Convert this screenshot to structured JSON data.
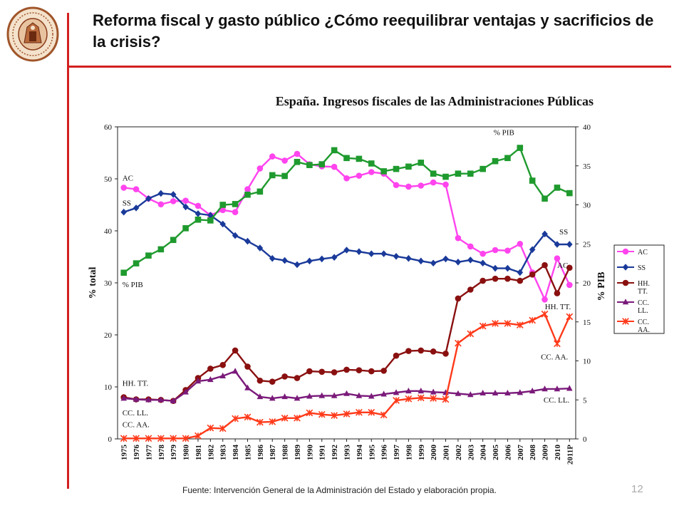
{
  "slide": {
    "title": "Reforma fiscal y gasto público ¿Cómo reequilibrar ventajas y sacrificios de la crisis?",
    "source": "Fuente: Intervención General de la Administración del Estado y elaboración propia.",
    "page_number": "12",
    "logo_icon": "university-seal-icon",
    "accent_color": "#d42020"
  },
  "chart_data": {
    "type": "line",
    "title": "España. Ingresos fiscales de las Administraciones Públicas",
    "ylabel": "% total",
    "y2label": "% PIB",
    "ylim": [
      0,
      60
    ],
    "y2lim": [
      0,
      40
    ],
    "yticks": [
      "0",
      "10",
      "20",
      "30",
      "40",
      "50",
      "60"
    ],
    "y2ticks": [
      "0",
      "5",
      "10",
      "15",
      "20",
      "25",
      "30",
      "35",
      "40"
    ],
    "categories": [
      "1975",
      "1976",
      "1977",
      "1978",
      "1979",
      "1980",
      "1981",
      "1982",
      "1983",
      "1984",
      "1985",
      "1986",
      "1987",
      "1988",
      "1989",
      "1990",
      "1991",
      "1992",
      "1993",
      "1994",
      "1995",
      "1996",
      "1997",
      "1998",
      "1999",
      "2000",
      "2001",
      "2002",
      "2003",
      "2004",
      "2005",
      "2006",
      "2007",
      "2008",
      "2009",
      "2010",
      "2011P"
    ],
    "legend_position": "right",
    "series": [
      {
        "name": "AC",
        "axis": "left",
        "color": "#ff44ee",
        "marker": "circle",
        "values": [
          48.3,
          48,
          46.2,
          45.1,
          45.7,
          45.8,
          44.8,
          43,
          44,
          43.6,
          48,
          52,
          54.3,
          53.5,
          54.8,
          52.8,
          52.4,
          52.3,
          50.1,
          50.6,
          51.3,
          51,
          48.8,
          48.5,
          48.7,
          49.3,
          48.9,
          38.6,
          37,
          35.6,
          36.3,
          36.2,
          37.5,
          32,
          26.8,
          34.7,
          29.6
        ]
      },
      {
        "name": "SS",
        "axis": "left",
        "color": "#1a3a9a",
        "marker": "diamond",
        "values": [
          43.6,
          44.4,
          46.2,
          47.2,
          47,
          44.6,
          43.3,
          43,
          41.3,
          39.1,
          38,
          36.7,
          34.7,
          34.3,
          33.5,
          34.2,
          34.6,
          34.9,
          36.3,
          36,
          35.6,
          35.6,
          35.1,
          34.7,
          34.2,
          33.8,
          34.6,
          34,
          34.4,
          33.8,
          32.8,
          32.8,
          32,
          36.4,
          39.4,
          37.4,
          37.4
        ]
      },
      {
        "name": "% PIB",
        "axis": "right",
        "color": "#1f9a2e",
        "marker": "square",
        "values": [
          21.3,
          22.5,
          23.5,
          24.3,
          25.5,
          27,
          28.1,
          28,
          30,
          30.1,
          31.3,
          31.7,
          33.8,
          33.7,
          35.5,
          35.1,
          35.2,
          37,
          36,
          35.9,
          35.3,
          34.3,
          34.6,
          34.9,
          35.4,
          34,
          33.6,
          34,
          34,
          34.6,
          35.6,
          36,
          37.3,
          33.1,
          30.8,
          32.2,
          31.5
        ]
      },
      {
        "name": "HH. TT.",
        "axis": "left",
        "color": "#8a1010",
        "marker": "circle",
        "values": [
          8,
          7.6,
          7.6,
          7.5,
          7.3,
          9.4,
          11.7,
          13.5,
          14.2,
          17,
          13.9,
          11.2,
          11,
          12,
          11.7,
          13,
          12.9,
          12.8,
          13.3,
          13.2,
          13,
          13.1,
          16,
          16.9,
          17,
          16.8,
          16.4,
          27,
          28.7,
          30.4,
          30.8,
          30.8,
          30.4,
          31.6,
          33.4,
          28,
          32.9
        ]
      },
      {
        "name": "CC. LL.",
        "axis": "left",
        "color": "#7a1a7a",
        "marker": "triangle",
        "values": [
          7.8,
          7.6,
          7.5,
          7.5,
          7.3,
          9,
          11.1,
          11.4,
          12.1,
          13,
          9.8,
          8.1,
          7.8,
          8.1,
          7.8,
          8.2,
          8.3,
          8.3,
          8.7,
          8.3,
          8.2,
          8.6,
          8.9,
          9.2,
          9.2,
          9,
          8.9,
          8.7,
          8.5,
          8.8,
          8.8,
          8.8,
          8.9,
          9.2,
          9.6,
          9.6,
          9.7
        ]
      },
      {
        "name": "CC. AA.",
        "axis": "left",
        "color": "#ff3a1a",
        "marker": "star",
        "values": [
          0.1,
          0.1,
          0.1,
          0.1,
          0.1,
          0.1,
          0.6,
          2.1,
          2,
          3.9,
          4.2,
          3.2,
          3.3,
          4,
          4,
          5,
          4.7,
          4.5,
          4.8,
          5.1,
          5.1,
          4.6,
          7.4,
          7.7,
          7.9,
          7.8,
          7.6,
          18.4,
          20.2,
          21.7,
          22.2,
          22.2,
          21.9,
          22.8,
          24,
          18.3,
          23.5
        ]
      }
    ],
    "annotations": [
      {
        "text": "AC",
        "series": "AC",
        "at": "1975"
      },
      {
        "text": "SS",
        "series": "SS",
        "at": "1975"
      },
      {
        "text": "% PIB",
        "series": "% PIB",
        "at": "1975"
      },
      {
        "text": "% PIB",
        "series": "% PIB",
        "at": "2007"
      },
      {
        "text": "SS",
        "series": "SS",
        "at": "2011P"
      },
      {
        "text": "AC",
        "series": "AC",
        "at": "2011P"
      },
      {
        "text": "HH. TT.",
        "series": "HH. TT.",
        "at": "1975"
      },
      {
        "text": "HH. TT.",
        "series": "HH. TT.",
        "at": "2011P"
      },
      {
        "text": "CC. LL.",
        "series": "CC. LL.",
        "at": "1975"
      },
      {
        "text": "CC. LL.",
        "series": "CC. LL.",
        "at": "2011P"
      },
      {
        "text": "CC. AA.",
        "series": "CC. AA.",
        "at": "1975"
      },
      {
        "text": "CC. AA.",
        "series": "CC. AA.",
        "at": "2011P"
      }
    ]
  }
}
